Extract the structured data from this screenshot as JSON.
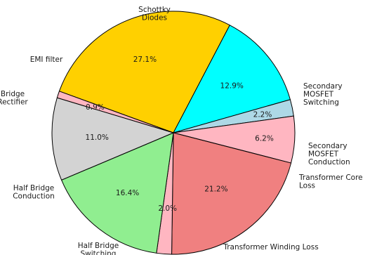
{
  "chart_data": {
    "type": "pie",
    "slices": [
      {
        "label": "Schottky\nDiodes",
        "value": 27.1,
        "value_label": "27.1%",
        "color": "#ffd000"
      },
      {
        "label": "Secondary\nMOSFET\nSwitching",
        "value": 12.9,
        "value_label": "12.9%",
        "color": "#00ffff"
      },
      {
        "label": "Secondary\nMOSFET\nConduction",
        "value": 2.2,
        "value_label": "2.2%",
        "color": "#add8e6"
      },
      {
        "label": "Transformer Core\nLoss",
        "value": 6.2,
        "value_label": "6.2%",
        "color": "#ffb6c1"
      },
      {
        "label": "Transformer Winding Loss",
        "value": 21.2,
        "value_label": "21.2%",
        "color": "#f08080"
      },
      {
        "label": "Half Bridge\nSwitching",
        "value": 2.0,
        "value_label": "2.0%",
        "color": "#ffb6c1"
      },
      {
        "label": "Half Bridge\nConduction",
        "value": 16.4,
        "value_label": "16.4%",
        "color": "#90ee90"
      },
      {
        "label": "Bridge\nRectifier",
        "value": 11.0,
        "value_label": "11.0%",
        "color": "#d3d3d3"
      },
      {
        "label": "EMI filter",
        "value": 0.9,
        "value_label": "0.9%",
        "color": "#ffb6c1"
      }
    ],
    "start_angle_deg": 160,
    "direction": "clockwise",
    "edge_color": "#000000"
  }
}
